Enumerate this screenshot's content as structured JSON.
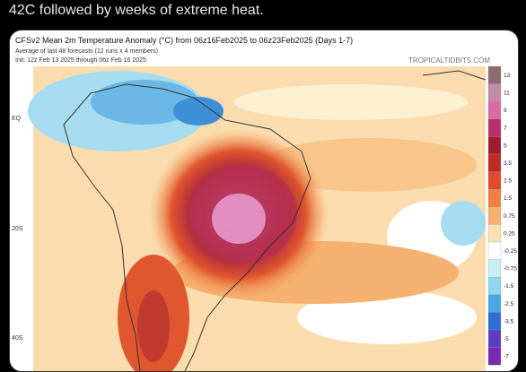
{
  "post": {
    "text": "42C followed by weeks of extreme heat."
  },
  "map": {
    "title": "CFSv2 Mean 2m Temperature Anomaly (°C) from 06z16Feb2025 to 06z23Feb2025 (Days 1-7)",
    "subtitle": "Average of last 48 forecasts (12 runs x 4 members)",
    "init": "Init: 12z Feb 13 2025 through 06z Feb 16 2025",
    "source": "TROPICALTIDBITS.COM",
    "latitude_labels": [
      "EQ",
      "20S",
      "40S"
    ],
    "colorbar_labels": [
      13,
      11,
      9,
      7,
      5,
      3.5,
      2.5,
      1.5,
      0.75,
      0.25,
      -0.25,
      -0.75,
      -1.5,
      -2.5,
      -3.5,
      -5,
      -7
    ]
  }
}
